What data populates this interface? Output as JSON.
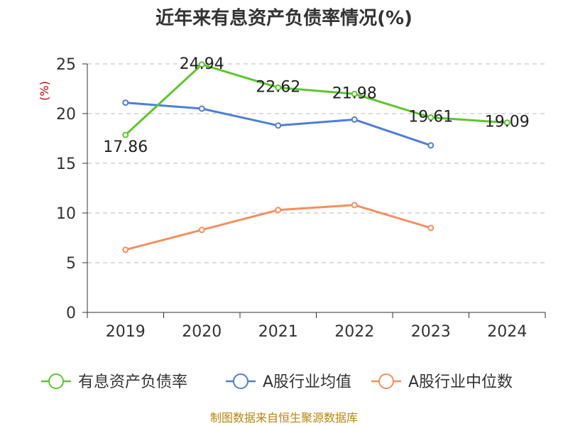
{
  "chart_data": {
    "type": "line",
    "title": "近年来有息资产负债率情况(%)",
    "ylabel": "(%)",
    "categories": [
      "2019",
      "2020",
      "2021",
      "2022",
      "2023",
      "2024"
    ],
    "ylim": [
      0,
      25
    ],
    "yticks": [
      0,
      5,
      10,
      15,
      20,
      25
    ],
    "grid": true,
    "legend_position": "bottom",
    "series": [
      {
        "name": "有息资产负债率",
        "color": "#5cc72c",
        "values": [
          17.86,
          24.94,
          22.62,
          21.98,
          19.61,
          19.09
        ],
        "labels": [
          "17.86",
          "24.94",
          "22.62",
          "21.98",
          "19.61",
          "19.09"
        ]
      },
      {
        "name": "A股行业均值",
        "color": "#4e7fd8",
        "values": [
          21.1,
          20.5,
          18.8,
          19.4,
          16.8,
          null
        ]
      },
      {
        "name": "A股行业中位数",
        "color": "#f58f5e",
        "values": [
          6.3,
          8.3,
          10.3,
          10.8,
          8.5,
          null
        ]
      }
    ],
    "source": "制图数据来自恒生聚源数据库"
  }
}
